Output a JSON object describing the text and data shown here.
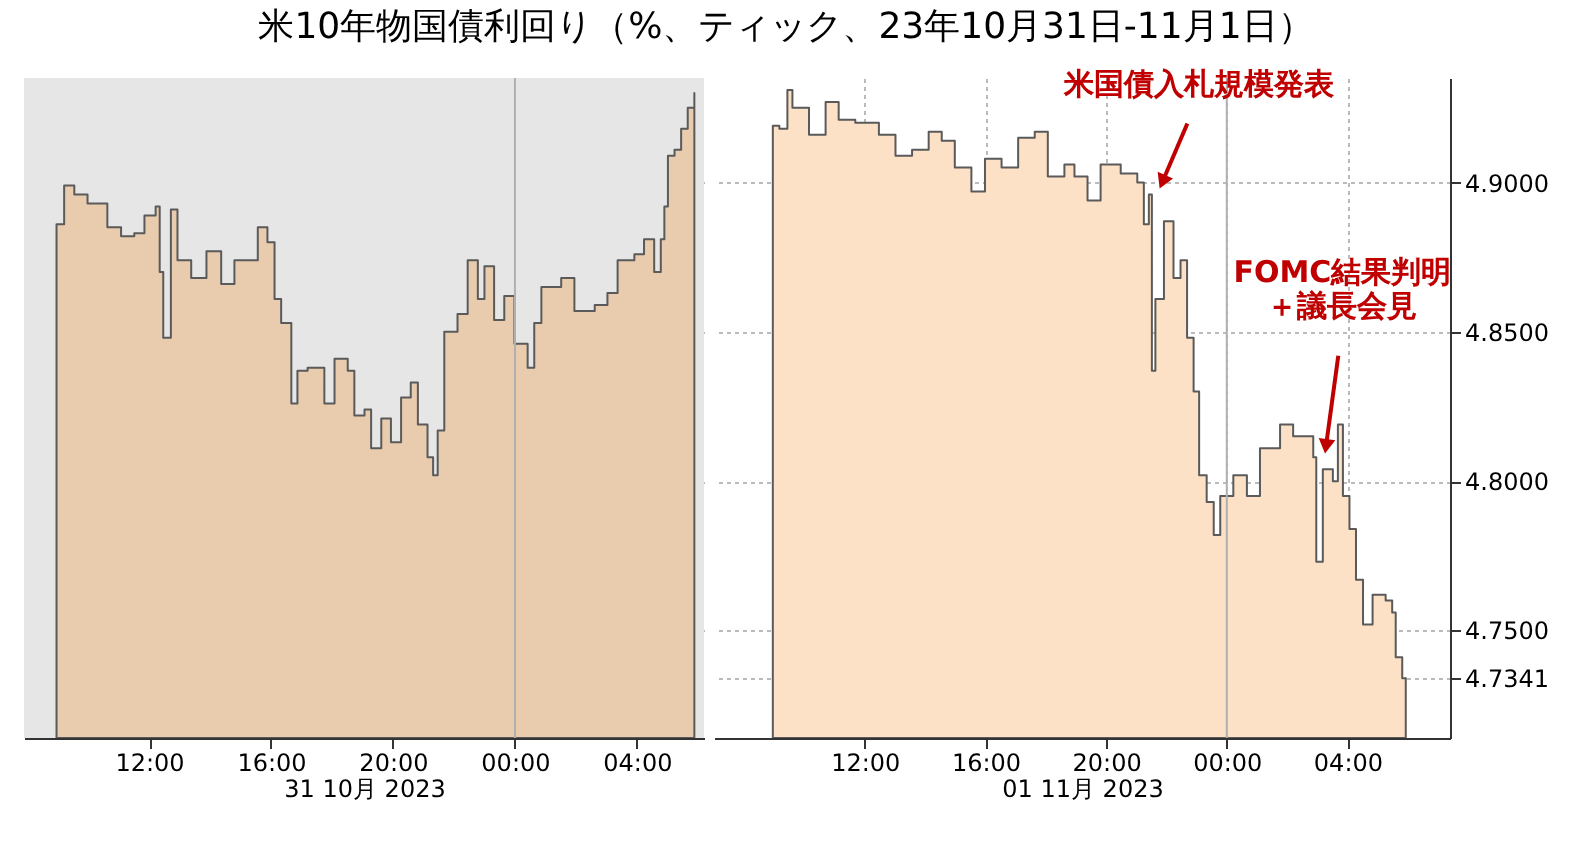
{
  "chart_data": [
    {
      "type": "area",
      "title": "米10年物国債利回り（%、ティック、23年10月31日-11月1日）",
      "xlabel": "31 10月 2023",
      "x": [
        "2023-10-31T08:58",
        "2023-10-31T09:13",
        "2023-10-31T09:33",
        "2023-10-31T09:59",
        "2023-10-31T10:38",
        "2023-10-31T11:05",
        "2023-10-31T11:31",
        "2023-10-31T11:51",
        "2023-10-31T12:13",
        "2023-10-31T12:21",
        "2023-10-31T12:28",
        "2023-10-31T12:43",
        "2023-10-31T12:56",
        "2023-10-31T13:23",
        "2023-10-31T13:53",
        "2023-10-31T14:22",
        "2023-10-31T14:48",
        "2023-10-31T15:34",
        "2023-10-31T15:53",
        "2023-10-31T16:07",
        "2023-10-31T16:20",
        "2023-10-31T16:40",
        "2023-10-31T16:52",
        "2023-10-31T17:12",
        "2023-10-31T17:45",
        "2023-10-31T18:05",
        "2023-10-31T18:31",
        "2023-10-31T18:44",
        "2023-10-31T19:04",
        "2023-10-31T19:17",
        "2023-10-31T19:37",
        "2023-10-31T19:56",
        "2023-10-31T20:16",
        "2023-10-31T20:35",
        "2023-10-31T20:49",
        "2023-10-31T21:08",
        "2023-10-31T21:19",
        "2023-10-31T21:28",
        "2023-10-31T21:41",
        "2023-10-31T22:07",
        "2023-10-31T22:27",
        "2023-10-31T22:47",
        "2023-10-31T23:00",
        "2023-10-31T23:19",
        "2023-10-31T23:39",
        "2023-10-31T23:59",
        "2023-11-01T00:25",
        "2023-11-01T00:38",
        "2023-11-01T00:52",
        "2023-11-01T01:31",
        "2023-11-01T01:57",
        "2023-11-01T02:37",
        "2023-11-01T03:02",
        "2023-11-01T03:22",
        "2023-11-01T03:55",
        "2023-11-01T04:14",
        "2023-11-01T04:34",
        "2023-11-01T04:47",
        "2023-11-01T04:54",
        "2023-11-01T05:01",
        "2023-11-01T05:14",
        "2023-11-01T05:27",
        "2023-11-01T05:40",
        "2023-11-01T05:53"
      ],
      "series": [
        {
          "color": "#e9ccae",
          "values": [
            4.886,
            4.899,
            4.896,
            4.893,
            4.885,
            4.882,
            4.883,
            4.889,
            4.892,
            4.87,
            4.848,
            4.891,
            4.874,
            4.868,
            4.877,
            4.866,
            4.874,
            4.885,
            4.88,
            4.861,
            4.853,
            4.826,
            4.837,
            4.838,
            4.826,
            4.841,
            4.837,
            4.822,
            4.824,
            4.811,
            4.821,
            4.813,
            4.828,
            4.833,
            4.819,
            4.808,
            4.802,
            4.817,
            4.85,
            4.856,
            4.874,
            4.861,
            4.872,
            4.854,
            4.862,
            4.846,
            4.838,
            4.853,
            4.865,
            4.868,
            4.857,
            4.859,
            4.863,
            4.874,
            4.876,
            4.881,
            4.87,
            4.881,
            4.892,
            4.909,
            4.911,
            4.918,
            4.925,
            4.93
          ]
        }
      ],
      "xlim": [
        "2023-10-31T07:54",
        "2023-11-01T06:12"
      ],
      "xticks": [
        {
          "value": "2023-10-31T12:00",
          "label": "12:00"
        },
        {
          "value": "2023-10-31T16:00",
          "label": "16:00"
        },
        {
          "value": "2023-10-31T20:00",
          "label": "20:00"
        },
        {
          "value": "2023-11-01T00:00",
          "label": "00:00"
        },
        {
          "value": "2023-11-01T04:00",
          "label": "04:00"
        }
      ],
      "ylim": [
        4.714,
        4.935
      ],
      "yticks": [
        4.75,
        4.8,
        4.85,
        4.9
      ],
      "bands": [
        {
          "axis": "x",
          "from": "2023-10-31T07:54",
          "to": "2023-11-01T06:12",
          "color": "#e6e6e6"
        }
      ],
      "ref_lines": [
        {
          "axis": "x",
          "value": "2023-11-01T00:00",
          "color": "#b0b0b0"
        }
      ],
      "grid": true,
      "tick_labels": "x"
    },
    {
      "type": "area",
      "xlabel": "01 11月 2023",
      "x": [
        "2023-11-01T08:57",
        "2023-11-01T09:10",
        "2023-11-01T09:26",
        "2023-11-01T09:36",
        "2023-11-01T10:09",
        "2023-11-01T10:42",
        "2023-11-01T11:08",
        "2023-11-01T11:41",
        "2023-11-01T12:28",
        "2023-11-01T13:01",
        "2023-11-01T13:34",
        "2023-11-01T14:07",
        "2023-11-01T14:33",
        "2023-11-01T14:59",
        "2023-11-01T15:32",
        "2023-11-01T15:59",
        "2023-11-01T16:32",
        "2023-11-01T17:05",
        "2023-11-01T17:38",
        "2023-11-01T18:04",
        "2023-11-01T18:37",
        "2023-11-01T18:57",
        "2023-11-01T19:23",
        "2023-11-01T19:49",
        "2023-11-01T20:29",
        "2023-11-01T21:02",
        "2023-11-01T21:15",
        "2023-11-01T21:25",
        "2023-11-01T21:31",
        "2023-11-01T21:38",
        "2023-11-01T21:55",
        "2023-11-01T22:14",
        "2023-11-01T22:28",
        "2023-11-01T22:41",
        "2023-11-01T22:54",
        "2023-11-01T23:05",
        "2023-11-01T23:20",
        "2023-11-01T23:34",
        "2023-11-01T23:47",
        "2023-11-02T00:13",
        "2023-11-02T00:40",
        "2023-11-02T01:06",
        "2023-11-02T01:46",
        "2023-11-02T02:12",
        "2023-11-02T02:52",
        "2023-11-02T02:58",
        "2023-11-02T03:11",
        "2023-11-02T03:31",
        "2023-11-02T03:41",
        "2023-11-02T03:51",
        "2023-11-02T04:04",
        "2023-11-02T04:17",
        "2023-11-02T04:31",
        "2023-11-02T04:50",
        "2023-11-02T05:16",
        "2023-11-02T05:29",
        "2023-11-02T05:36",
        "2023-11-02T05:49",
        "2023-11-02T05:56"
      ],
      "series": [
        {
          "color": "#fde1c6",
          "values": [
            4.919,
            4.918,
            4.931,
            4.925,
            4.916,
            4.927,
            4.921,
            4.92,
            4.916,
            4.909,
            4.911,
            4.917,
            4.914,
            4.905,
            4.897,
            4.908,
            4.905,
            4.915,
            4.917,
            4.902,
            4.906,
            4.902,
            4.894,
            4.906,
            4.903,
            4.9,
            4.886,
            4.896,
            4.837,
            4.861,
            4.887,
            4.868,
            4.874,
            4.848,
            4.83,
            4.802,
            4.793,
            4.782,
            4.795,
            4.802,
            4.795,
            4.811,
            4.819,
            4.815,
            4.808,
            4.773,
            4.804,
            4.8,
            4.819,
            4.795,
            4.784,
            4.767,
            4.752,
            4.762,
            4.76,
            4.756,
            4.741,
            4.734,
            4.7341
          ]
        }
      ],
      "xlim": [
        "2023-11-01T07:00",
        "2023-11-02T07:24"
      ],
      "yticks": [
        {
          "value": 4.7341,
          "label": "4.7341"
        },
        {
          "value": 4.75,
          "label": "4.7500"
        },
        {
          "value": 4.8,
          "label": "4.8000"
        },
        {
          "value": 4.85,
          "label": "4.8500"
        },
        {
          "value": 4.9,
          "label": "4.9000"
        }
      ],
      "xticks": [
        {
          "value": "2023-11-01T12:00",
          "label": "12:00"
        },
        {
          "value": "2023-11-01T16:00",
          "label": "16:00"
        },
        {
          "value": "2023-11-01T20:00",
          "label": "20:00"
        },
        {
          "value": "2023-11-02T00:00",
          "label": "00:00"
        },
        {
          "value": "2023-11-02T04:00",
          "label": "04:00"
        }
      ],
      "ylim": [
        4.714,
        4.935
      ],
      "ref_lines": [
        {
          "axis": "x",
          "value": "2023-11-02T00:00",
          "color": "#b0b0b0"
        }
      ],
      "annotations": [
        {
          "text": "米国債入札規模発表",
          "x": "2023-11-01T21:54",
          "y": 4.901
        },
        {
          "text": "FOMC結果判明＋議長会見",
          "x": "2023-11-02T03:18",
          "y": 4.8125
        }
      ],
      "grid": true
    }
  ]
}
